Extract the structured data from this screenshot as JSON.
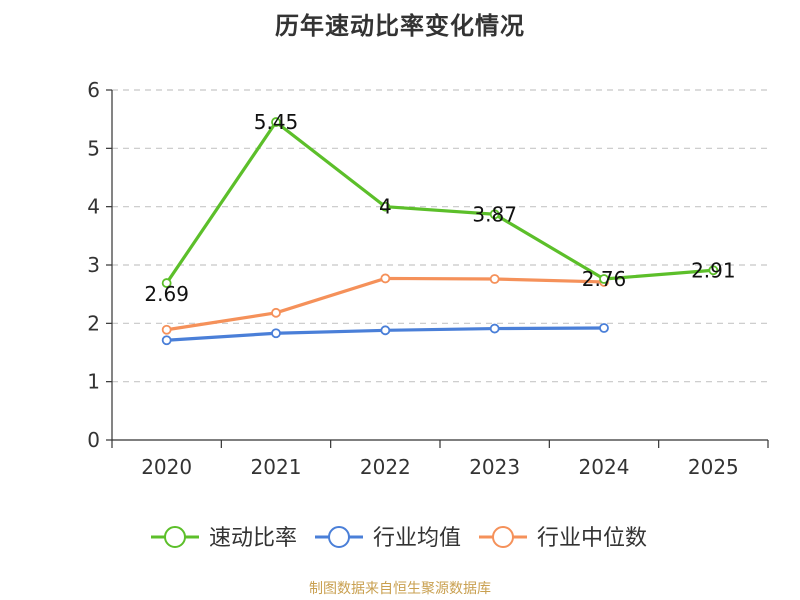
{
  "title": "历年速动比率变化情况",
  "source": "制图数据来自恒生聚源数据库",
  "colors": {
    "grid": "#c8c8c8",
    "axis": "#333333",
    "source_text": "#c9a050"
  },
  "chart_data": {
    "type": "line",
    "title": "历年速动比率变化情况",
    "xlabel": "",
    "ylabel": "",
    "categories": [
      "2020",
      "2021",
      "2022",
      "2023",
      "2024",
      "2025"
    ],
    "ylim": [
      0,
      6
    ],
    "yticks": [
      0,
      1,
      2,
      3,
      4,
      5,
      6
    ],
    "grid": true,
    "legend_position": "bottom",
    "series": [
      {
        "name": "速动比率",
        "color": "#5cbf2a",
        "values": [
          2.69,
          5.45,
          4,
          3.87,
          2.76,
          2.91
        ],
        "labels": [
          "2.69",
          "5.45",
          "4",
          "3.87",
          "2.76",
          "2.91"
        ],
        "show_labels": true
      },
      {
        "name": "行业均值",
        "color": "#4a7fd8",
        "values": [
          1.71,
          1.83,
          1.88,
          1.91,
          1.92,
          null
        ],
        "show_labels": false
      },
      {
        "name": "行业中位数",
        "color": "#f5915a",
        "values": [
          1.89,
          2.18,
          2.77,
          2.76,
          2.71,
          null
        ],
        "show_labels": false
      }
    ]
  }
}
